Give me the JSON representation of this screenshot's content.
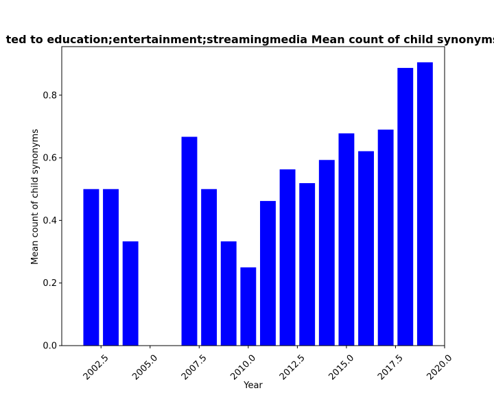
{
  "chart_data": {
    "type": "bar",
    "title": "ted to education;entertainment;streamingmedia Mean count of child synonyms",
    "xlabel": "Year",
    "ylabel": "Mean count of child synonyms",
    "xlim": [
      2000.5,
      2020.0
    ],
    "ylim": [
      0,
      0.955
    ],
    "grid": false,
    "bar_color": "#0000ff",
    "x": [
      2002,
      2003,
      2004,
      2005,
      2006,
      2007,
      2008,
      2009,
      2010,
      2011,
      2012,
      2013,
      2014,
      2015,
      2016,
      2017,
      2018,
      2019
    ],
    "values": [
      0.5,
      0.5,
      0.333,
      0.0,
      0.0,
      0.667,
      0.5,
      0.333,
      0.25,
      0.462,
      0.563,
      0.519,
      0.593,
      0.678,
      0.621,
      0.69,
      0.887,
      0.905
    ],
    "xticks": [
      2002.5,
      2005.0,
      2007.5,
      2010.0,
      2012.5,
      2015.0,
      2017.5,
      2020.0
    ],
    "xtick_labels": [
      "2002.5",
      "2005.0",
      "2007.5",
      "2010.0",
      "2012.5",
      "2015.0",
      "2017.5",
      "2020.0"
    ],
    "yticks": [
      0.0,
      0.2,
      0.4,
      0.6,
      0.8
    ],
    "ytick_labels": [
      "0.0",
      "0.2",
      "0.4",
      "0.6",
      "0.8"
    ]
  }
}
